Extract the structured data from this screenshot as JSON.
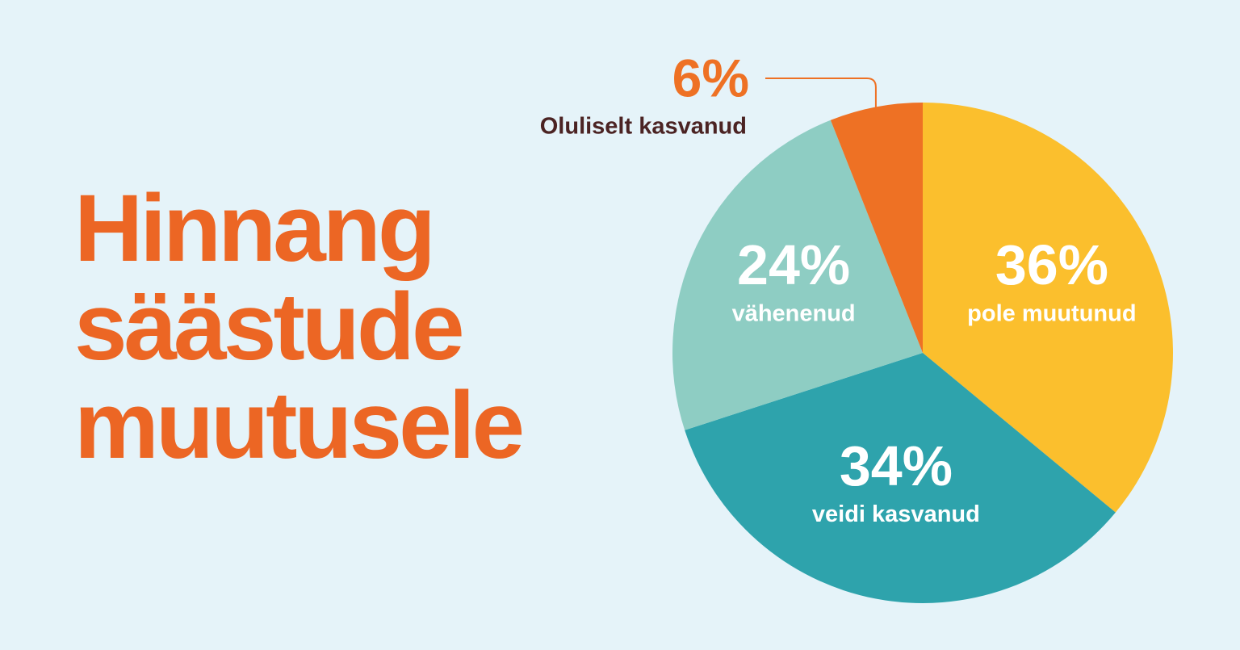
{
  "chart_data": {
    "type": "pie",
    "title": "Hinnang säästude muutusele",
    "categories": [
      "pole muutunud",
      "veidi kasvanud",
      "vähenenud",
      "Oluliselt kasvanud"
    ],
    "values": [
      36,
      34,
      24,
      6
    ],
    "value_labels": [
      "36%",
      "34%",
      "24%",
      "6%"
    ],
    "colors": [
      "#fbbf2d",
      "#2ea3ac",
      "#8ecdc3",
      "#ee7124"
    ]
  }
}
